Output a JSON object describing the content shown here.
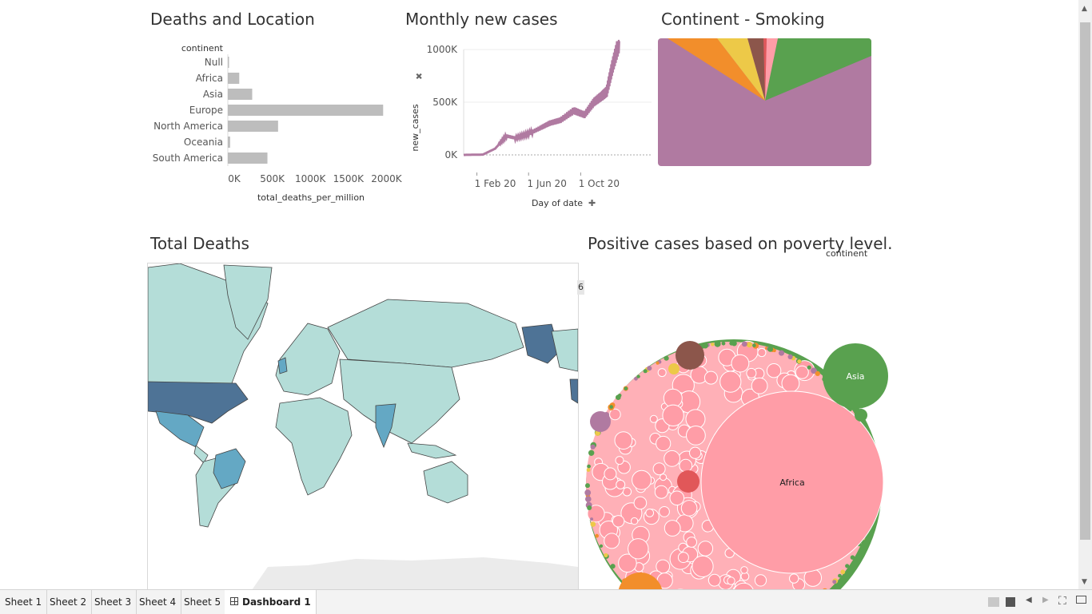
{
  "titles": {
    "deaths_location": "Deaths and Location",
    "monthly_cases": "Monthly new cases",
    "continent_smoking": "Continent - Smoking",
    "total_deaths": "Total Deaths",
    "poverty": "Positive cases  based on poverty level."
  },
  "bar_chart": {
    "type": "bar",
    "row_header": "continent",
    "categories": [
      "Null",
      "Africa",
      "Asia",
      "Europe",
      "North America",
      "Oceania",
      "South America"
    ],
    "values": [
      5000,
      150000,
      320000,
      2040000,
      660000,
      30000,
      520000
    ],
    "xticks": [
      "0K",
      "500K",
      "1000K",
      "1500K",
      "2000K"
    ],
    "xlabel": "total_deaths_per_million",
    "xlim": [
      0,
      2100000
    ],
    "color": "#bdbdbd"
  },
  "line_chart": {
    "type": "line",
    "ylabel": "new_cases",
    "xlabel": "Day of date",
    "yticks": [
      "1000K",
      "500K",
      "0K"
    ],
    "xticks": [
      "1 Feb 20",
      "1 Jun 20",
      "1 Oct 20"
    ],
    "color": "#b07aa1",
    "x": [
      "2020-01-01",
      "2020-02-15",
      "2020-03-15",
      "2020-04-10",
      "2020-05-01",
      "2020-06-01",
      "2020-07-01",
      "2020-07-20",
      "2020-08-15",
      "2020-09-15",
      "2020-10-10",
      "2020-11-01",
      "2020-11-20",
      "2020-12-01",
      "2020-12-15",
      "2020-12-31"
    ],
    "values": [
      0,
      3000,
      60000,
      180000,
      160000,
      200000,
      260000,
      300000,
      330000,
      420000,
      380000,
      500000,
      560000,
      600000,
      850000,
      1080000
    ]
  },
  "pie_chart": {
    "type": "pie",
    "colors": [
      "#b07aa1",
      "#59a14f",
      "#ff9da7",
      "#e15759",
      "#8c564b",
      "#edc948",
      "#f28e2b"
    ]
  },
  "map": {
    "legend_stub": "6",
    "colors": {
      "ocean": "#ffffff",
      "land_low": "#b4ddd8",
      "land_mid": "#64a8c4",
      "land_high": "#4e7396"
    }
  },
  "bubble_chart": {
    "legend_title": "continent",
    "labels": {
      "asia": "Asia",
      "africa": "Africa"
    },
    "colors": {
      "africa": "#ff9da7",
      "asia": "#59a14f",
      "na": "#8c564b",
      "eu": "#edc948",
      "sa": "#e15759",
      "oc": "#b07aa1",
      "orange": "#f28e2b"
    }
  },
  "tabs": [
    "Sheet 1",
    "Sheet 2",
    "Sheet 3",
    "Sheet 4",
    "Sheet 5",
    "Dashboard 1"
  ]
}
